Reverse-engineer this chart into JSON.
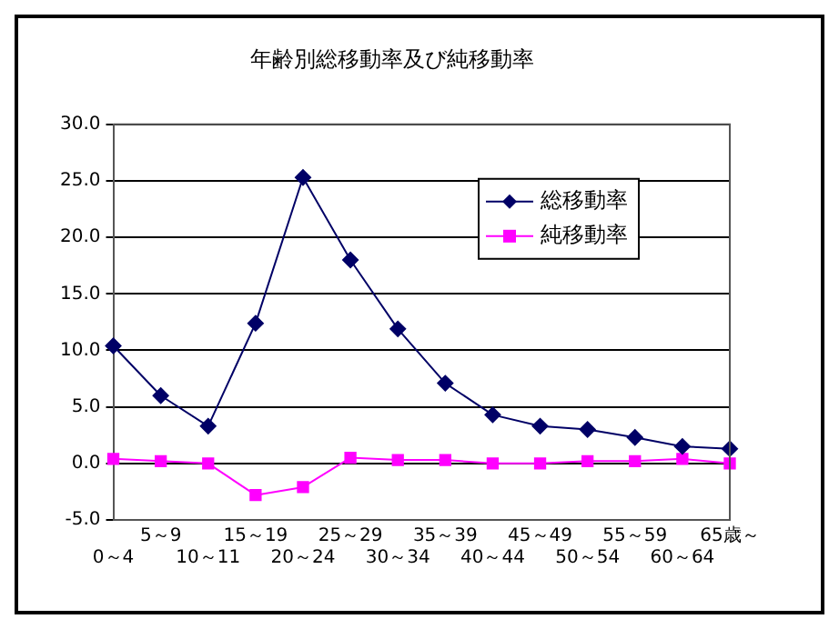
{
  "chart_data": {
    "type": "line",
    "title": "年齢別総移動率及び純移動率",
    "categories": [
      "0～4",
      "5～9",
      "10～11",
      "15～19",
      "20～24",
      "25～29",
      "30～34",
      "35～39",
      "40～44",
      "45～49",
      "50～54",
      "55～59",
      "60～64",
      "65歳～"
    ],
    "series": [
      {
        "name": "総移動率",
        "color": "#000066",
        "marker": "diamond",
        "values": [
          10.4,
          6.0,
          3.3,
          12.4,
          25.3,
          18.0,
          11.9,
          7.1,
          4.3,
          3.3,
          3.0,
          2.3,
          1.5,
          1.3
        ]
      },
      {
        "name": "純移動率",
        "color": "#ff00ff",
        "marker": "square",
        "values": [
          0.4,
          0.2,
          0.0,
          -2.8,
          -2.1,
          0.5,
          0.3,
          0.3,
          0.0,
          0.0,
          0.2,
          0.2,
          0.4,
          0.0
        ]
      }
    ],
    "ylim": [
      -5,
      30
    ],
    "yticks": [
      {
        "value": -5,
        "label": "-5.0"
      },
      {
        "value": 0,
        "label": "0.0"
      },
      {
        "value": 5,
        "label": "5.0"
      },
      {
        "value": 10,
        "label": "10.0"
      },
      {
        "value": 15,
        "label": "15.0"
      },
      {
        "value": 20,
        "label": "20.0"
      },
      {
        "value": 25,
        "label": "25.0"
      },
      {
        "value": 30,
        "label": "30.0"
      }
    ],
    "grid": "y",
    "legend": "top right"
  }
}
